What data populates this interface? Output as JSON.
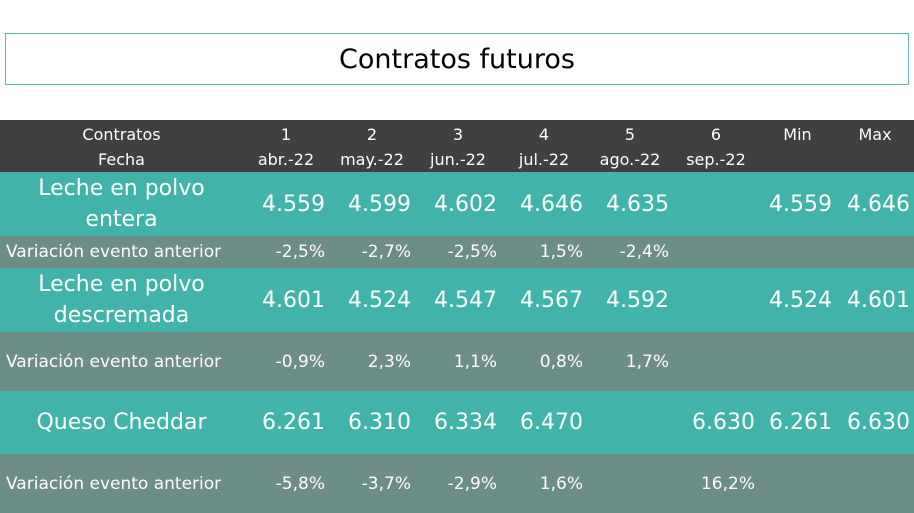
{
  "title": "Contratos futuros",
  "header": {
    "label_line1": "Contratos",
    "label_line2": "Fecha",
    "columns": [
      {
        "num": "1",
        "date": "abr.-22"
      },
      {
        "num": "2",
        "date": "may.-22"
      },
      {
        "num": "3",
        "date": "jun.-22"
      },
      {
        "num": "4",
        "date": "jul.-22"
      },
      {
        "num": "5",
        "date": "ago.-22"
      },
      {
        "num": "6",
        "date": "sep.-22"
      }
    ],
    "min": "Min",
    "max": "Max"
  },
  "rows": [
    {
      "label_line1": "Leche en polvo",
      "label_line2": "entera",
      "values": [
        "4.559",
        "4.599",
        "4.602",
        "4.646",
        "4.635",
        ""
      ],
      "min": "4.559",
      "max": "4.646"
    },
    {
      "label": "Variación evento anterior",
      "values": [
        "-2,5%",
        "-2,7%",
        "-2,5%",
        "1,5%",
        "-2,4%",
        ""
      ],
      "min": "",
      "max": ""
    },
    {
      "label_line1": "Leche en polvo",
      "label_line2": "descremada",
      "values": [
        "4.601",
        "4.524",
        "4.547",
        "4.567",
        "4.592",
        ""
      ],
      "min": "4.524",
      "max": "4.601"
    },
    {
      "label": "Variación evento anterior",
      "values": [
        "-0,9%",
        "2,3%",
        "1,1%",
        "0,8%",
        "1,7%",
        ""
      ],
      "min": "",
      "max": ""
    },
    {
      "label_line1": "Queso Cheddar",
      "label_line2": "",
      "values": [
        "6.261",
        "6.310",
        "6.334",
        "6.470",
        "",
        "6.630"
      ],
      "min": "6.261",
      "max": "6.630"
    },
    {
      "label": "Variación evento anterior",
      "values": [
        "-5,8%",
        "-3,7%",
        "-2,9%",
        "1,6%",
        "",
        "16,2%"
      ],
      "min": "",
      "max": ""
    }
  ]
}
